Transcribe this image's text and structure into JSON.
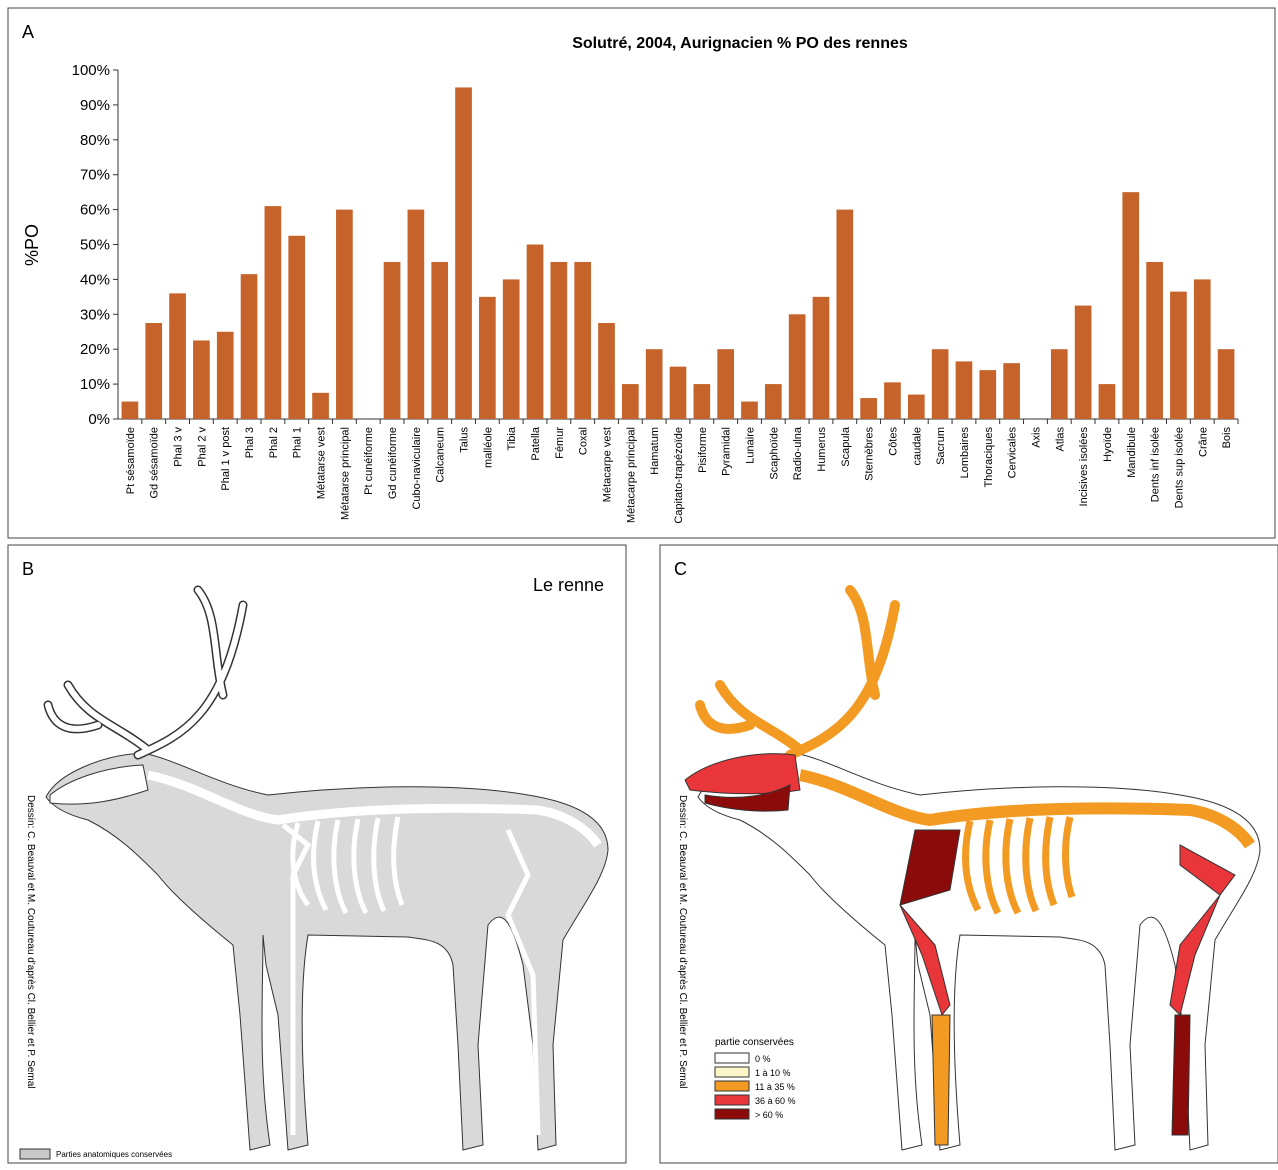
{
  "chart_data": {
    "type": "bar",
    "title": "Solutré, 2004, Aurignacien % PO des rennes",
    "ylabel": "%PO",
    "categories": [
      "Pt sésamoïde",
      "Gd sésamoïde",
      "Phal 3 v",
      "Phal 2 v",
      "Phal 1 v post",
      "Phal 3",
      "Phal 2",
      "Phal 1",
      "Métatarse vest",
      "Métatarse principal",
      "Pt cunéiforme",
      "Gd cunéiforme",
      "Cubo-naviculaire",
      "Calcaneum",
      "Talus",
      "malléole",
      "Tibia",
      "Patella",
      "Fémur",
      "Coxal",
      "Métacarpe vest",
      "Métacarpe principal",
      "Hamatum",
      "Capitato-trapézoïde",
      "Pisiforme",
      "Pyramidal",
      "Lunaire",
      "Scaphoïde",
      "Radio-ulna",
      "Humerus",
      "Scapula",
      "Sternèbres",
      "Côtes",
      "caudale",
      "Sacrum",
      "Lombaires",
      "Thoraciques",
      "Cervicales",
      "Axis",
      "Atlas",
      "Incisives isolées",
      "Hyoïde",
      "Mandibule",
      "Dents inf isolée",
      "Dents sup isolée",
      "Crâne",
      "Bois"
    ],
    "values": [
      5,
      27.5,
      36,
      22.5,
      25,
      41.5,
      61,
      52.5,
      7.5,
      60,
      0,
      45,
      60,
      45,
      95,
      35,
      40,
      50,
      45,
      45,
      27.5,
      10,
      20,
      15,
      10,
      20,
      5,
      10,
      30,
      35,
      60,
      6,
      10.5,
      7,
      20,
      16.5,
      14,
      16,
      0,
      20,
      32.5,
      10,
      65,
      45,
      36.5,
      40,
      20
    ],
    "color": "#c5632a",
    "ylim": [
      0,
      100
    ],
    "yticks": [
      {
        "value": 0,
        "label": "0%"
      },
      {
        "value": 10,
        "label": "10%"
      },
      {
        "value": 20,
        "label": "20%"
      },
      {
        "value": 30,
        "label": "30%"
      },
      {
        "value": 40,
        "label": "40%"
      },
      {
        "value": 50,
        "label": "50%"
      },
      {
        "value": 60,
        "label": "60%"
      },
      {
        "value": 70,
        "label": "70%"
      },
      {
        "value": 80,
        "label": "80%"
      },
      {
        "value": 90,
        "label": "90%"
      },
      {
        "value": 100,
        "label": "100%"
      }
    ],
    "grid": false
  },
  "panels": {
    "A": {
      "letter": "A"
    },
    "B": {
      "letter": "B",
      "title": "Le renne",
      "credit": "Dessin: C. Beauval et M. Coutureau d'après Cl. Bellier et P. Semal",
      "legend": "Parties anatomiques conservées"
    },
    "C": {
      "letter": "C",
      "credit": "Dessin: C. Beauval et M. Coutureau d'après Cl. Bellier et P. Semal",
      "legend_title": "partie conservées",
      "legend": [
        {
          "label": "0 %",
          "color": "#ffffff"
        },
        {
          "label": "1 à 10 %",
          "color": "#fdf6c8"
        },
        {
          "label": "11 à 35 %",
          "color": "#f39a23"
        },
        {
          "label": "36 à 60 %",
          "color": "#e8363a"
        },
        {
          "label": "> 60 %",
          "color": "#8b0a0a"
        }
      ]
    }
  }
}
